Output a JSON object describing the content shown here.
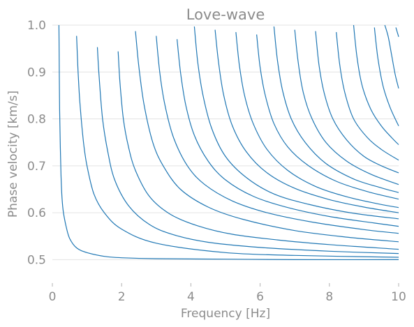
{
  "chart_data": {
    "type": "line",
    "title": "Love-wave",
    "xlabel": "Frequency [Hz]",
    "ylabel": "Phase velocity [km/s]",
    "xlim": [
      0,
      10
    ],
    "ylim": [
      0.45,
      1.0
    ],
    "xticks": [
      0,
      2,
      4,
      6,
      8,
      10
    ],
    "yticks": [
      0.5,
      0.6,
      0.7,
      0.8,
      0.9,
      1.0
    ],
    "xtick_labels": [
      "0",
      "2",
      "4",
      "6",
      "8",
      "10"
    ],
    "ytick_labels": [
      "0.5",
      "0.6",
      "0.7",
      "0.8",
      "0.9",
      "1.0"
    ],
    "grid": "horizontal",
    "line_color": "#1f77b4",
    "series": [
      {
        "x": [
          0.19,
          0.2,
          0.21,
          0.23,
          0.25,
          0.28,
          0.32,
          0.4,
          0.5,
          0.7,
          1.0,
          1.5,
          2.0,
          3.0,
          5.0,
          7.0,
          10.0
        ],
        "y": [
          1.0,
          0.9,
          0.82,
          0.74,
          0.68,
          0.63,
          0.6,
          0.57,
          0.545,
          0.525,
          0.515,
          0.507,
          0.504,
          0.502,
          0.501,
          0.5,
          0.5
        ]
      },
      {
        "x": [
          0.7,
          0.72,
          0.75,
          0.8,
          0.9,
          1.0,
          1.2,
          1.5,
          2.0,
          3.0,
          5.0,
          7.0,
          10.0
        ],
        "y": [
          0.977,
          0.94,
          0.89,
          0.83,
          0.75,
          0.7,
          0.64,
          0.6,
          0.565,
          0.535,
          0.515,
          0.509,
          0.505
        ]
      },
      {
        "x": [
          1.3,
          1.35,
          1.45,
          1.6,
          1.8,
          2.2,
          2.8,
          3.5,
          4.5,
          6.0,
          8.0,
          10.0
        ],
        "y": [
          0.953,
          0.89,
          0.8,
          0.73,
          0.67,
          0.615,
          0.575,
          0.553,
          0.537,
          0.526,
          0.518,
          0.513
        ]
      },
      {
        "x": [
          1.9,
          1.95,
          2.05,
          2.2,
          2.4,
          2.8,
          3.4,
          4.2,
          5.2,
          6.5,
          8.0,
          10.0
        ],
        "y": [
          0.944,
          0.88,
          0.8,
          0.74,
          0.69,
          0.635,
          0.597,
          0.572,
          0.554,
          0.542,
          0.532,
          0.522
        ]
      },
      {
        "x": [
          2.4,
          2.5,
          2.65,
          2.9,
          3.2,
          3.7,
          4.5,
          5.5,
          7.0,
          8.5,
          10.0
        ],
        "y": [
          0.987,
          0.91,
          0.83,
          0.75,
          0.7,
          0.65,
          0.612,
          0.586,
          0.562,
          0.548,
          0.538
        ]
      },
      {
        "x": [
          3.0,
          3.1,
          3.25,
          3.5,
          3.9,
          4.4,
          5.2,
          6.2,
          7.5,
          9.0,
          10.0
        ],
        "y": [
          0.977,
          0.9,
          0.83,
          0.76,
          0.7,
          0.66,
          0.625,
          0.6,
          0.58,
          0.564,
          0.556
        ]
      },
      {
        "x": [
          3.6,
          3.7,
          3.85,
          4.1,
          4.5,
          5.0,
          5.8,
          6.8,
          8.0,
          9.3,
          10.0
        ],
        "y": [
          0.97,
          0.9,
          0.83,
          0.765,
          0.71,
          0.67,
          0.635,
          0.611,
          0.592,
          0.578,
          0.571
        ]
      },
      {
        "x": [
          4.1,
          4.2,
          4.35,
          4.6,
          5.0,
          5.6,
          6.4,
          7.4,
          8.6,
          10.0
        ],
        "y": [
          0.997,
          0.92,
          0.85,
          0.78,
          0.72,
          0.675,
          0.64,
          0.618,
          0.6,
          0.587
        ]
      },
      {
        "x": [
          4.7,
          4.8,
          4.95,
          5.2,
          5.6,
          6.2,
          7.0,
          8.0,
          9.0,
          10.0
        ],
        "y": [
          0.99,
          0.92,
          0.85,
          0.785,
          0.73,
          0.685,
          0.652,
          0.628,
          0.612,
          0.6
        ]
      },
      {
        "x": [
          5.3,
          5.4,
          5.55,
          5.8,
          6.2,
          6.8,
          7.6,
          8.5,
          9.4,
          10.0
        ],
        "y": [
          0.985,
          0.915,
          0.85,
          0.79,
          0.735,
          0.69,
          0.656,
          0.634,
          0.619,
          0.611
        ]
      },
      {
        "x": [
          5.9,
          6.0,
          6.15,
          6.4,
          6.8,
          7.4,
          8.2,
          9.1,
          10.0
        ],
        "y": [
          0.98,
          0.91,
          0.85,
          0.79,
          0.74,
          0.7,
          0.667,
          0.645,
          0.629
        ]
      },
      {
        "x": [
          6.4,
          6.5,
          6.65,
          6.9,
          7.3,
          7.9,
          8.7,
          9.5,
          10.0
        ],
        "y": [
          0.997,
          0.925,
          0.86,
          0.8,
          0.75,
          0.705,
          0.672,
          0.653,
          0.643
        ]
      },
      {
        "x": [
          7.0,
          7.1,
          7.25,
          7.5,
          7.9,
          8.5,
          9.2,
          10.0
        ],
        "y": [
          0.99,
          0.92,
          0.855,
          0.8,
          0.75,
          0.71,
          0.682,
          0.66
        ]
      },
      {
        "x": [
          7.6,
          7.7,
          7.85,
          8.1,
          8.5,
          9.0,
          9.5,
          10.0
        ],
        "y": [
          0.987,
          0.915,
          0.855,
          0.8,
          0.755,
          0.72,
          0.7,
          0.685
        ]
      },
      {
        "x": [
          8.2,
          8.3,
          8.45,
          8.7,
          9.1,
          9.5,
          10.0
        ],
        "y": [
          0.985,
          0.915,
          0.855,
          0.8,
          0.76,
          0.735,
          0.712
        ]
      },
      {
        "x": [
          8.7,
          8.8,
          8.95,
          9.2,
          9.5,
          9.8,
          10.0
        ],
        "y": [
          1.0,
          0.93,
          0.87,
          0.82,
          0.785,
          0.76,
          0.745
        ]
      },
      {
        "x": [
          9.3,
          9.4,
          9.55,
          9.75,
          10.0
        ],
        "y": [
          0.995,
          0.93,
          0.87,
          0.825,
          0.785
        ]
      },
      {
        "x": [
          9.6,
          9.7,
          9.8,
          9.9,
          10.0
        ],
        "y": [
          1.0,
          0.975,
          0.935,
          0.895,
          0.865
        ]
      },
      {
        "x": [
          9.92,
          9.96,
          10.0
        ],
        "y": [
          0.995,
          0.985,
          0.975
        ]
      }
    ]
  }
}
